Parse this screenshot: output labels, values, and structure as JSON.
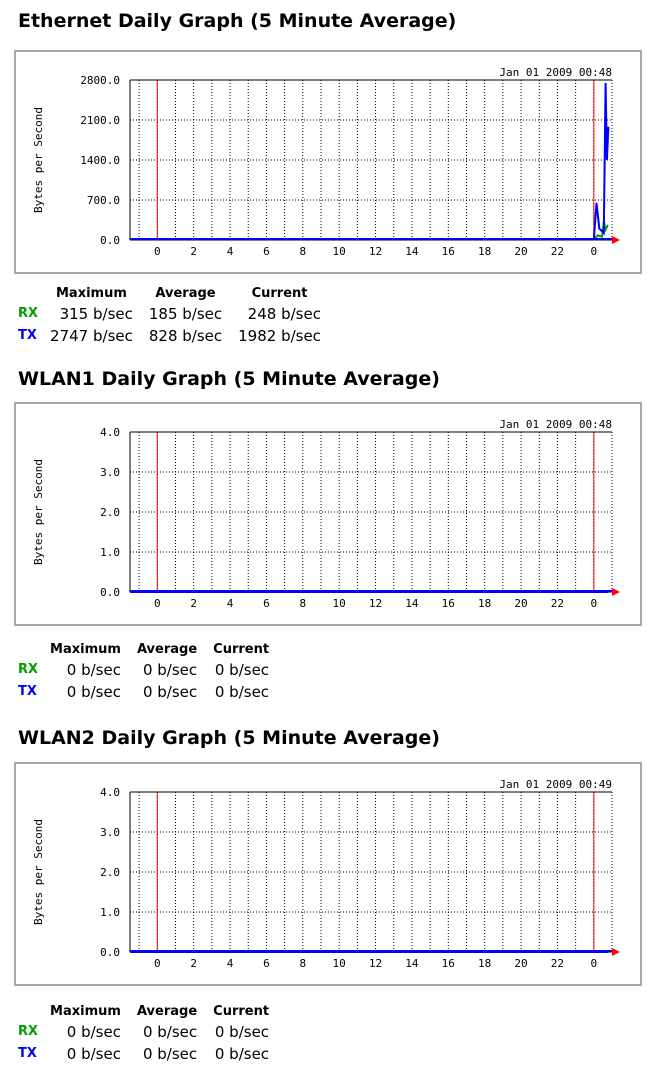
{
  "colors": {
    "rx": "#00a000",
    "tx": "#0000ff",
    "marker": "#ff0000",
    "grid": "#000000",
    "frame": "#a8a8a8"
  },
  "graphs": [
    {
      "title": "Ethernet Daily Graph (5 Minute Average)",
      "timestamp": "Jan 01 2009 00:48",
      "stats": {
        "headers": [
          "Maximum",
          "Average",
          "Current"
        ],
        "rx": {
          "label": "RX",
          "maximum": "315 b/sec",
          "average": "185 b/sec",
          "current": "248 b/sec"
        },
        "tx": {
          "label": "TX",
          "maximum": "2747 b/sec",
          "average": "828 b/sec",
          "current": "1982 b/sec"
        }
      }
    },
    {
      "title": "WLAN1 Daily Graph (5 Minute Average)",
      "timestamp": "Jan 01 2009 00:48",
      "stats": {
        "headers": [
          "Maximum",
          "Average",
          "Current"
        ],
        "rx": {
          "label": "RX",
          "maximum": "0 b/sec",
          "average": "0 b/sec",
          "current": "0 b/sec"
        },
        "tx": {
          "label": "TX",
          "maximum": "0 b/sec",
          "average": "0 b/sec",
          "current": "0 b/sec"
        }
      }
    },
    {
      "title": "WLAN2 Daily Graph (5 Minute Average)",
      "timestamp": "Jan 01 2009 00:49",
      "stats": {
        "headers": [
          "Maximum",
          "Average",
          "Current"
        ],
        "rx": {
          "label": "RX",
          "maximum": "0 b/sec",
          "average": "0 b/sec",
          "current": "0 b/sec"
        },
        "tx": {
          "label": "TX",
          "maximum": "0 b/sec",
          "average": "0 b/sec",
          "current": "0 b/sec"
        }
      }
    }
  ],
  "chart_data": [
    {
      "type": "line",
      "title": "Ethernet Daily Graph (5 Minute Average)",
      "ylabel": "Bytes per Second",
      "xlabel": "",
      "y_ticks": [
        "0.0",
        "700.0",
        "1400.0",
        "2100.0",
        "2800.0"
      ],
      "ylim": [
        0,
        2800
      ],
      "x_ticks": [
        "0",
        "2",
        "4",
        "6",
        "8",
        "10",
        "12",
        "14",
        "16",
        "18",
        "20",
        "22",
        "0"
      ],
      "xlim": [
        -1.5,
        25
      ],
      "grid": true,
      "markers": [
        0,
        24
      ],
      "series": [
        {
          "name": "RX",
          "color": "#00a000",
          "x": [
            24.0,
            24.2,
            24.45,
            24.55,
            24.65,
            24.75,
            24.8
          ],
          "y": [
            0,
            80,
            60,
            315,
            180,
            250,
            248
          ]
        },
        {
          "name": "TX",
          "color": "#0000ff",
          "x": [
            24.0,
            24.15,
            24.3,
            24.55,
            24.65,
            24.72,
            24.8
          ],
          "y": [
            0,
            650,
            200,
            120,
            2747,
            1400,
            1982
          ]
        }
      ]
    },
    {
      "type": "line",
      "title": "WLAN1 Daily Graph (5 Minute Average)",
      "ylabel": "Bytes per Second",
      "xlabel": "",
      "y_ticks": [
        "0.0",
        "1.0",
        "2.0",
        "3.0",
        "4.0"
      ],
      "ylim": [
        0,
        4
      ],
      "x_ticks": [
        "0",
        "2",
        "4",
        "6",
        "8",
        "10",
        "12",
        "14",
        "16",
        "18",
        "20",
        "22",
        "0"
      ],
      "xlim": [
        -1.5,
        25
      ],
      "grid": true,
      "markers": [
        0,
        24
      ],
      "series": [
        {
          "name": "RX",
          "color": "#00a000",
          "x": [
            -1.5,
            24.8
          ],
          "y": [
            0,
            0
          ]
        },
        {
          "name": "TX",
          "color": "#0000ff",
          "x": [
            -1.5,
            24.8
          ],
          "y": [
            0,
            0
          ]
        }
      ]
    },
    {
      "type": "line",
      "title": "WLAN2 Daily Graph (5 Minute Average)",
      "ylabel": "Bytes per Second",
      "xlabel": "",
      "y_ticks": [
        "0.0",
        "1.0",
        "2.0",
        "3.0",
        "4.0"
      ],
      "ylim": [
        0,
        4
      ],
      "x_ticks": [
        "0",
        "2",
        "4",
        "6",
        "8",
        "10",
        "12",
        "14",
        "16",
        "18",
        "20",
        "22",
        "0"
      ],
      "xlim": [
        -1.5,
        25
      ],
      "grid": true,
      "markers": [
        0,
        24
      ],
      "series": [
        {
          "name": "RX",
          "color": "#00a000",
          "x": [
            -1.5,
            24.8
          ],
          "y": [
            0,
            0
          ]
        },
        {
          "name": "TX",
          "color": "#0000ff",
          "x": [
            -1.5,
            24.8
          ],
          "y": [
            0,
            0
          ]
        }
      ]
    }
  ]
}
